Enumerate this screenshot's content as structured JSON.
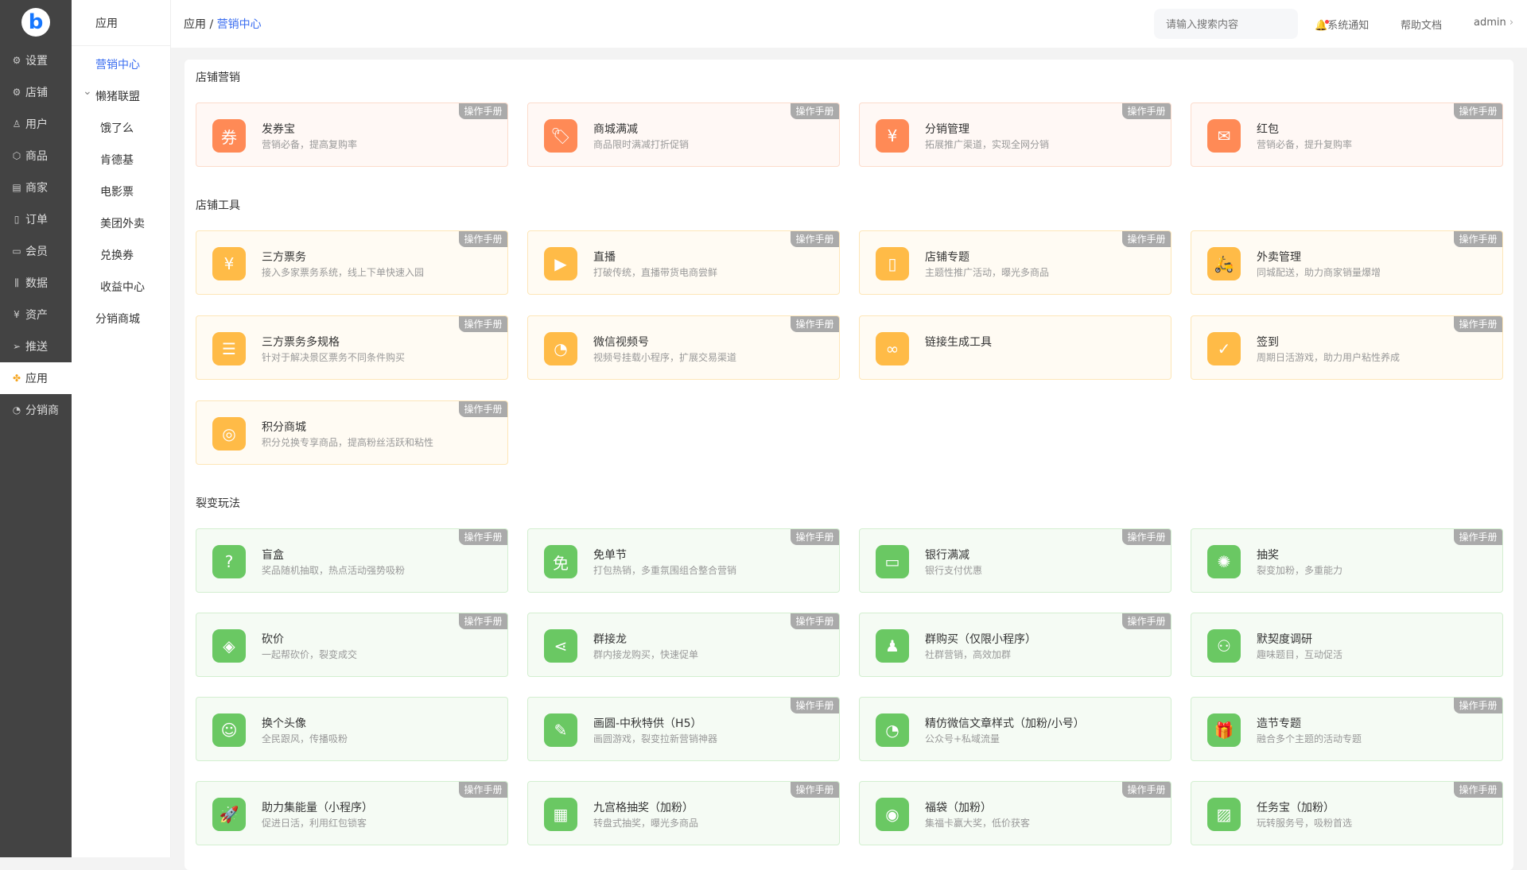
{
  "logo": "b",
  "nav1": [
    {
      "label": "设置",
      "icon": "gear-icon",
      "glyph": "⚙"
    },
    {
      "label": "店铺",
      "icon": "shop-icon",
      "glyph": "⚙"
    },
    {
      "label": "用户",
      "icon": "user-icon",
      "glyph": "♙"
    },
    {
      "label": "商品",
      "icon": "box-icon",
      "glyph": "⬡"
    },
    {
      "label": "商家",
      "icon": "store-icon",
      "glyph": "▤"
    },
    {
      "label": "订单",
      "icon": "clipboard-icon",
      "glyph": "▯"
    },
    {
      "label": "会员",
      "icon": "card-icon",
      "glyph": "▭"
    },
    {
      "label": "数据",
      "icon": "chart-icon",
      "glyph": "⫼"
    },
    {
      "label": "资产",
      "icon": "yen-circle-icon",
      "glyph": "¥"
    },
    {
      "label": "推送",
      "icon": "send-icon",
      "glyph": "➢"
    },
    {
      "label": "应用",
      "icon": "apps-icon",
      "glyph": "✤",
      "active": true
    },
    {
      "label": "分销商",
      "icon": "pie-icon",
      "glyph": "◔"
    }
  ],
  "nav2": {
    "title": "应用",
    "items": [
      {
        "label": "营销中心",
        "active": true,
        "level": 0
      },
      {
        "label": "懒猪联盟",
        "level": 0,
        "expanded": true
      },
      {
        "label": "饿了么",
        "level": 1
      },
      {
        "label": "肯德基",
        "level": 1
      },
      {
        "label": "电影票",
        "level": 1
      },
      {
        "label": "美团外卖",
        "level": 1
      },
      {
        "label": "兑换券",
        "level": 1
      },
      {
        "label": "收益中心",
        "level": 1
      },
      {
        "label": "分销商城",
        "level": 0
      }
    ]
  },
  "header": {
    "breadcrumb_root": "应用",
    "breadcrumb_sep": " / ",
    "breadcrumb_current": "营销中心",
    "search_placeholder": "请输入搜索内容",
    "notify": "系统通知",
    "help": "帮助文档",
    "user": "admin"
  },
  "manual_label": "操作手册",
  "colors": {
    "orange": "#ff8a56",
    "yellow": "#ffbb47",
    "green": "#6ac863",
    "accent": "#3a6df0"
  },
  "sections": [
    {
      "title": "店铺营销",
      "theme": "orange",
      "items": [
        {
          "title": "发券宝",
          "desc": "营销必备，提高复购率",
          "manual": true,
          "glyph": "券",
          "icon": "coupon-icon"
        },
        {
          "title": "商城满减",
          "desc": "商品限时满减打折促销",
          "manual": true,
          "glyph": "🏷",
          "icon": "tag-icon"
        },
        {
          "title": "分销管理",
          "desc": "拓展推广渠道，实现全网分销",
          "manual": true,
          "glyph": "¥",
          "icon": "hand-coin-icon"
        },
        {
          "title": "红包",
          "desc": "营销必备，提升复购率",
          "manual": true,
          "glyph": "✉",
          "icon": "red-packet-icon"
        }
      ]
    },
    {
      "title": "店铺工具",
      "theme": "yellow",
      "items": [
        {
          "title": "三方票务",
          "desc": "接入多家票务系统，线上下单快速入园",
          "manual": true,
          "glyph": "¥",
          "icon": "ticket-icon"
        },
        {
          "title": "直播",
          "desc": "打破传统，直播带货电商尝鲜",
          "manual": true,
          "glyph": "▶",
          "icon": "video-icon"
        },
        {
          "title": "店铺专题",
          "desc": "主题性推广活动，曝光多商品",
          "manual": true,
          "glyph": "▯",
          "icon": "document-icon"
        },
        {
          "title": "外卖管理",
          "desc": "同城配送，助力商家销量爆增",
          "manual": true,
          "glyph": "🛵",
          "icon": "scooter-icon"
        },
        {
          "title": "三方票务多规格",
          "desc": "针对于解决景区票务不同条件购买",
          "manual": true,
          "glyph": "☰",
          "icon": "tickets-icon"
        },
        {
          "title": "微信视频号",
          "desc": "视频号挂载小程序，扩展交易渠道",
          "manual": true,
          "glyph": "◔",
          "icon": "wechat-icon"
        },
        {
          "title": "链接生成工具",
          "desc": "",
          "manual": false,
          "glyph": "∞",
          "icon": "link-icon"
        },
        {
          "title": "签到",
          "desc": "周期日活游戏，助力用户粘性养成",
          "manual": true,
          "glyph": "✓",
          "icon": "calendar-check-icon"
        },
        {
          "title": "积分商城",
          "desc": "积分兑换专享商品，提高粉丝活跃和粘性",
          "manual": true,
          "glyph": "◎",
          "icon": "coins-icon"
        }
      ]
    },
    {
      "title": "裂变玩法",
      "theme": "green",
      "items": [
        {
          "title": "盲盒",
          "desc": "奖品随机抽取，热点活动强势吸粉",
          "manual": true,
          "glyph": "?",
          "icon": "mystery-box-icon"
        },
        {
          "title": "免单节",
          "desc": "打包热销，多重氛围组合整合营销",
          "manual": true,
          "glyph": "免",
          "icon": "free-jar-icon"
        },
        {
          "title": "银行满减",
          "desc": "银行支付优惠",
          "manual": true,
          "glyph": "▭",
          "icon": "bank-card-icon"
        },
        {
          "title": "抽奖",
          "desc": "裂变加粉，多重能力",
          "manual": true,
          "glyph": "✺",
          "icon": "wheel-icon"
        },
        {
          "title": "砍价",
          "desc": "一起帮砍价，裂变成交",
          "manual": true,
          "glyph": "◈",
          "icon": "price-tag-icon"
        },
        {
          "title": "群接龙",
          "desc": "群内接龙购买，快速促单",
          "manual": true,
          "glyph": "⋖",
          "icon": "share-icon"
        },
        {
          "title": "群购买（仅限小程序）",
          "desc": "社群营销，高效加群",
          "manual": true,
          "glyph": "♟",
          "icon": "group-icon"
        },
        {
          "title": "默契度调研",
          "desc": "趣味题目，互动促活",
          "manual": false,
          "glyph": "⚇",
          "icon": "couple-icon"
        },
        {
          "title": "换个头像",
          "desc": "全民跟风，传播吸粉",
          "manual": false,
          "glyph": "☺",
          "icon": "avatar-icon"
        },
        {
          "title": "画圆-中秋特供（H5）",
          "desc": "画圆游戏，裂变拉新营销神器",
          "manual": true,
          "glyph": "✎",
          "icon": "brush-icon"
        },
        {
          "title": "精仿微信文章样式（加粉/小号）",
          "desc": "公众号+私域流量",
          "manual": false,
          "glyph": "◔",
          "icon": "wechat-article-icon"
        },
        {
          "title": "造节专题",
          "desc": "融合多个主题的活动专题",
          "manual": true,
          "glyph": "🎁",
          "icon": "gift-icon"
        },
        {
          "title": "助力集能量（小程序）",
          "desc": "促进日活，利用红包锁客",
          "manual": true,
          "glyph": "🚀",
          "icon": "rocket-icon"
        },
        {
          "title": "九宫格抽奖（加粉）",
          "desc": "转盘式抽奖，曝光多商品",
          "manual": true,
          "glyph": "▦",
          "icon": "grid-icon"
        },
        {
          "title": "福袋（加粉）",
          "desc": "集福卡赢大奖，低价获客",
          "manual": true,
          "glyph": "◉",
          "icon": "lucky-bag-icon"
        },
        {
          "title": "任务宝（加粉）",
          "desc": "玩转服务号，吸粉首选",
          "manual": true,
          "glyph": "▨",
          "icon": "picture-icon"
        }
      ]
    }
  ]
}
